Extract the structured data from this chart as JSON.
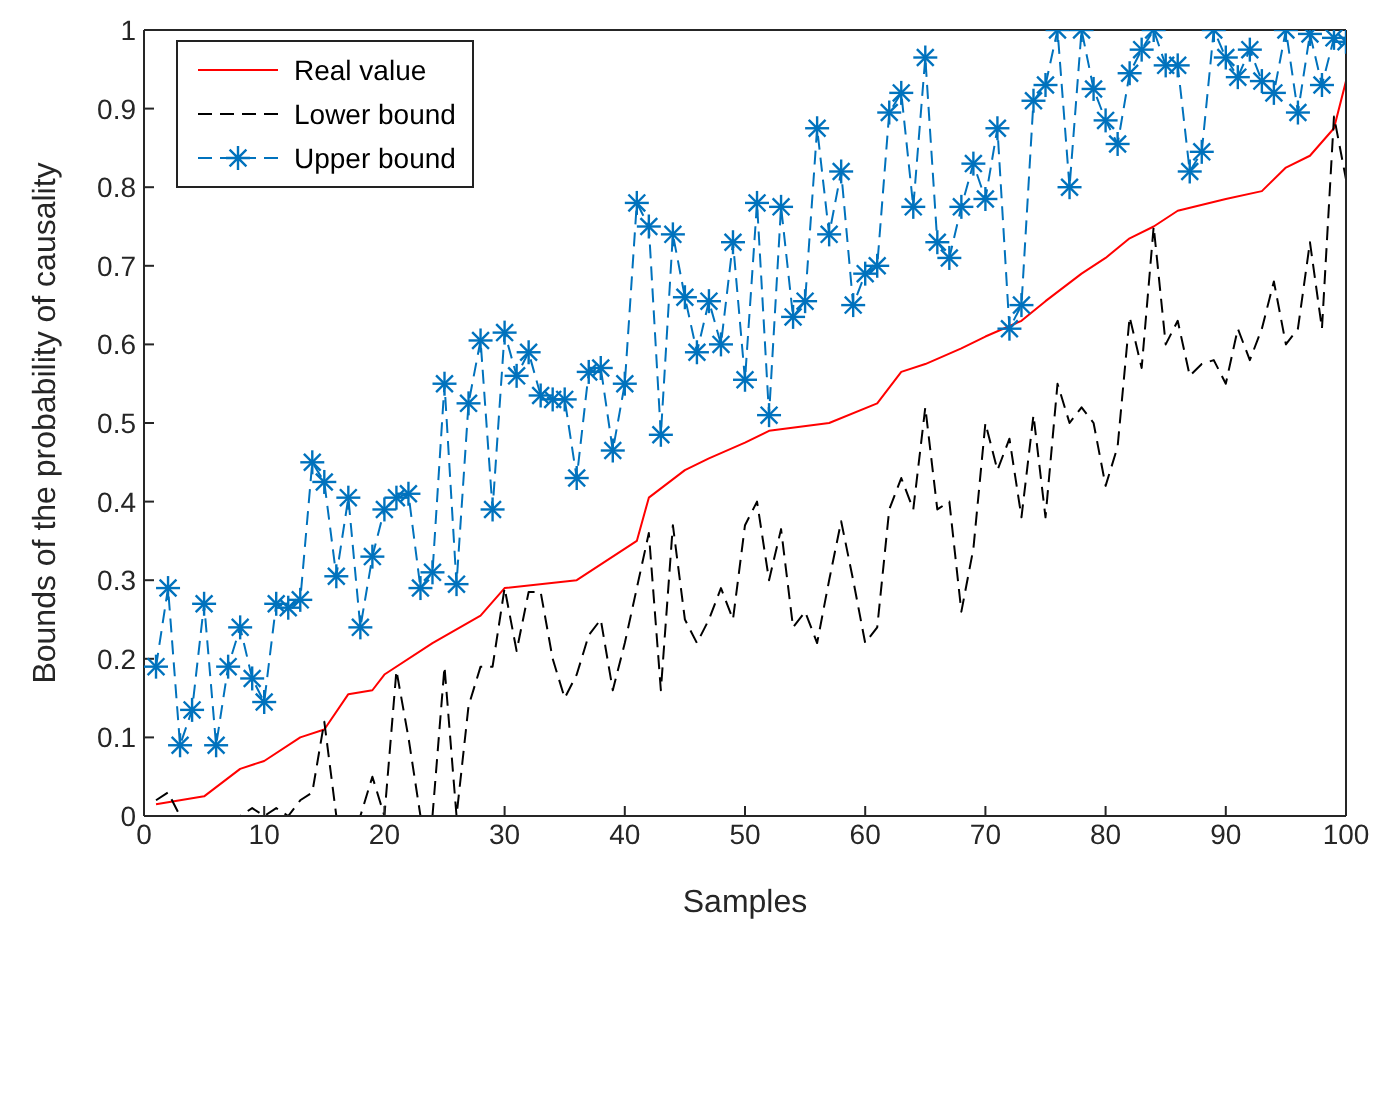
{
  "chart_data": {
    "type": "line",
    "xlabel": "Samples",
    "ylabel": "Bounds of the probability of causality",
    "xlim": [
      0,
      100
    ],
    "xticks": [
      0,
      10,
      20,
      30,
      40,
      50,
      60,
      70,
      80,
      90,
      100
    ],
    "ylim": [
      0,
      1
    ],
    "yticks": [
      0,
      0.1,
      0.2,
      0.3,
      0.4,
      0.5,
      0.6,
      0.7,
      0.8,
      0.9,
      1
    ],
    "grid": false,
    "legend": "top left",
    "x": [
      1,
      2,
      3,
      4,
      5,
      6,
      7,
      8,
      9,
      10,
      11,
      12,
      13,
      14,
      15,
      16,
      17,
      18,
      19,
      20,
      21,
      22,
      23,
      24,
      25,
      26,
      27,
      28,
      29,
      30,
      31,
      32,
      33,
      34,
      35,
      36,
      37,
      38,
      39,
      40,
      41,
      42,
      43,
      44,
      45,
      46,
      47,
      48,
      49,
      50,
      51,
      52,
      53,
      54,
      55,
      56,
      57,
      58,
      59,
      60,
      61,
      62,
      63,
      64,
      65,
      66,
      67,
      68,
      69,
      70,
      71,
      72,
      73,
      74,
      75,
      76,
      77,
      78,
      79,
      80,
      81,
      82,
      83,
      84,
      85,
      86,
      87,
      88,
      89,
      90,
      91,
      92,
      93,
      94,
      95,
      96,
      97,
      98,
      99,
      100
    ],
    "series": [
      {
        "name": "Real value",
        "color": "#ff0000",
        "line_style": "solid",
        "marker": "none",
        "x": [
          1,
          5,
          8,
          10,
          13,
          15,
          17,
          19,
          20,
          24,
          28,
          30,
          36,
          41,
          42,
          45,
          47,
          50,
          52,
          57,
          61,
          63,
          65,
          68,
          70,
          73,
          75,
          78,
          80,
          82,
          84,
          86,
          90,
          93,
          95,
          97,
          99,
          100
        ],
        "values": [
          0.015,
          0.025,
          0.06,
          0.07,
          0.1,
          0.11,
          0.155,
          0.16,
          0.18,
          0.22,
          0.255,
          0.29,
          0.3,
          0.35,
          0.405,
          0.44,
          0.455,
          0.475,
          0.49,
          0.5,
          0.525,
          0.565,
          0.575,
          0.595,
          0.61,
          0.63,
          0.655,
          0.69,
          0.71,
          0.735,
          0.75,
          0.77,
          0.785,
          0.795,
          0.825,
          0.84,
          0.875,
          0.935
        ]
      },
      {
        "name": "Lower bound",
        "color": "#000000",
        "line_style": "dashed",
        "marker": "none",
        "values": [
          0.02,
          0.03,
          0,
          0,
          0,
          0,
          0,
          0,
          0.01,
          0,
          0.01,
          0,
          0.02,
          0.03,
          0.12,
          0,
          0,
          0,
          0.05,
          0,
          0.185,
          0.1,
          0,
          0,
          0.19,
          0,
          0.14,
          0.19,
          0.19,
          0.29,
          0.21,
          0.285,
          0.285,
          0.2,
          0.15,
          0.18,
          0.23,
          0.25,
          0.16,
          0.22,
          0.29,
          0.36,
          0.16,
          0.37,
          0.25,
          0.22,
          0.25,
          0.29,
          0.25,
          0.37,
          0.4,
          0.3,
          0.365,
          0.24,
          0.26,
          0.22,
          0.3,
          0.375,
          0.3,
          0.22,
          0.24,
          0.39,
          0.43,
          0.39,
          0.52,
          0.39,
          0.4,
          0.26,
          0.34,
          0.5,
          0.44,
          0.48,
          0.38,
          0.51,
          0.38,
          0.55,
          0.5,
          0.52,
          0.5,
          0.42,
          0.47,
          0.635,
          0.57,
          0.75,
          0.6,
          0.63,
          0.56,
          0.575,
          0.58,
          0.55,
          0.62,
          0.58,
          0.62,
          0.68,
          0.6,
          0.62,
          0.73,
          0.62,
          0.89,
          0.81
        ]
      },
      {
        "name": "Upper bound",
        "color": "#0072bd",
        "line_style": "dashed",
        "marker": "cross",
        "values": [
          0.19,
          0.29,
          0.09,
          0.135,
          0.27,
          0.09,
          0.19,
          0.24,
          0.175,
          0.145,
          0.27,
          0.265,
          0.275,
          0.45,
          0.425,
          0.305,
          0.405,
          0.24,
          0.33,
          0.39,
          0.405,
          0.41,
          0.29,
          0.31,
          0.55,
          0.295,
          0.525,
          0.605,
          0.39,
          0.615,
          0.56,
          0.59,
          0.535,
          0.53,
          0.53,
          0.43,
          0.565,
          0.57,
          0.465,
          0.55,
          0.78,
          0.75,
          0.485,
          0.74,
          0.66,
          0.59,
          0.655,
          0.6,
          0.73,
          0.555,
          0.78,
          0.51,
          0.775,
          0.635,
          0.655,
          0.875,
          0.74,
          0.82,
          0.65,
          0.69,
          0.7,
          0.895,
          0.92,
          0.775,
          0.965,
          0.73,
          0.71,
          0.775,
          0.83,
          0.785,
          0.875,
          0.62,
          0.65,
          0.91,
          0.93,
          1,
          0.8,
          1,
          0.925,
          0.885,
          0.855,
          0.945,
          0.975,
          1,
          0.955,
          0.955,
          0.82,
          0.845,
          1,
          0.965,
          0.94,
          0.975,
          0.935,
          0.92,
          1,
          0.895,
          0.995,
          0.93,
          0.99,
          0.985
        ]
      }
    ]
  }
}
